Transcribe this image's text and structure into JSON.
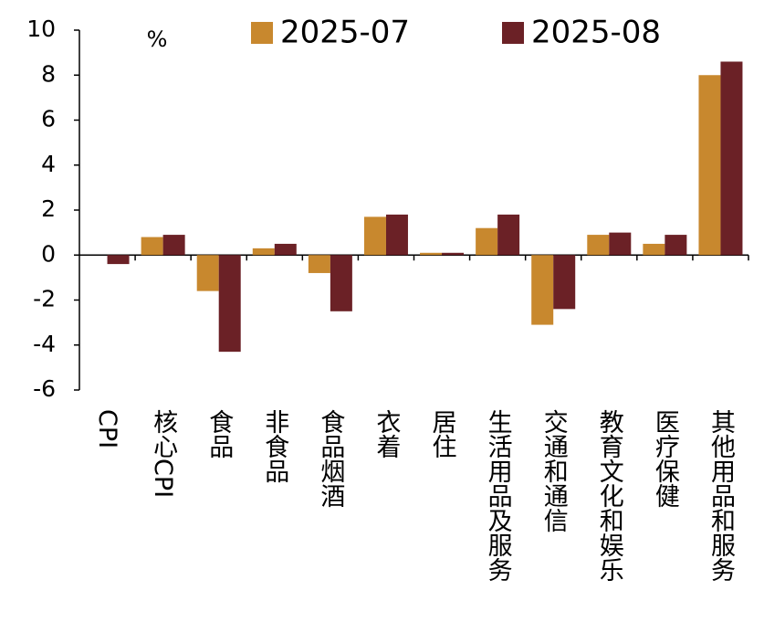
{
  "chart_data": {
    "type": "bar",
    "unit": "%",
    "categories": [
      "CPI",
      "核心CPI",
      "食品",
      "非食品",
      "食品烟酒",
      "衣着",
      "居住",
      "生活用品及服务",
      "交通和通信",
      "教育文化和娱乐",
      "医疗保健",
      "其他用品和服务"
    ],
    "series": [
      {
        "name": "2025-07",
        "color": "#C8882E",
        "values": [
          0,
          0.8,
          -1.6,
          0.3,
          -0.8,
          1.7,
          0.1,
          1.2,
          -3.1,
          0.9,
          0.5,
          8.0
        ]
      },
      {
        "name": "2025-08",
        "color": "#6B2126",
        "values": [
          -0.4,
          0.9,
          -4.3,
          0.5,
          -2.5,
          1.8,
          0.1,
          1.8,
          -2.4,
          1.0,
          0.9,
          8.6
        ]
      }
    ],
    "ylim": [
      -6,
      10
    ],
    "yticks": [
      -6,
      -4,
      -2,
      0,
      2,
      4,
      6,
      8,
      10
    ]
  }
}
